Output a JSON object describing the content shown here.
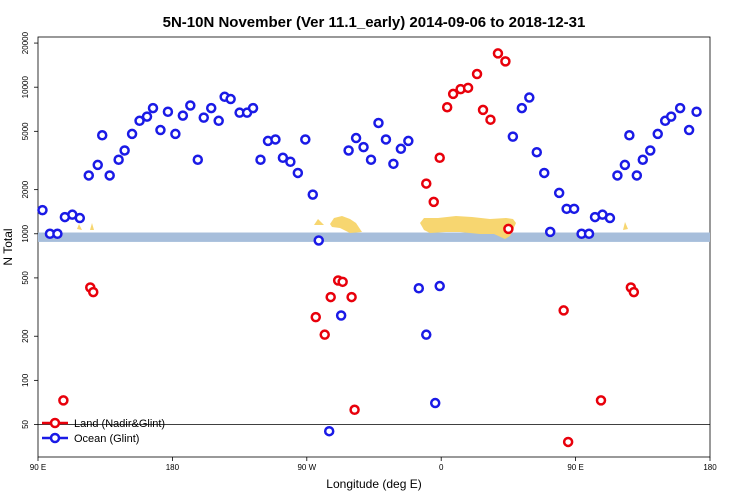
{
  "chart_data": {
    "type": "scatter",
    "title": "5N-10N November (Ver 11.1_early)   2014-09-06 to 2018-12-31",
    "xlabel": "Longitude (deg E)",
    "ylabel": "N Total",
    "x_axis": {
      "range_unwrapped": [
        90,
        540
      ],
      "ticks": [
        {
          "value": 90,
          "label": "90 E"
        },
        {
          "value": 180,
          "label": "180"
        },
        {
          "value": 270,
          "label": "90 W"
        },
        {
          "value": 360,
          "label": "0"
        },
        {
          "value": 450,
          "label": "90 E"
        },
        {
          "value": 540,
          "label": "180"
        }
      ]
    },
    "y_axis": {
      "scale": "log",
      "range": [
        30,
        22000
      ],
      "ticks": [
        50,
        100,
        200,
        500,
        1000,
        2000,
        5000,
        10000,
        20000
      ],
      "tick_labels": [
        "50",
        "100",
        "200",
        "500",
        "1000",
        "2000",
        "5000",
        "10000",
        "20000"
      ]
    },
    "reference_line": 50,
    "background_band": {
      "y_range": [
        880,
        1020
      ],
      "color": "#a7bedb"
    },
    "land_color": "#f7d670",
    "series": [
      {
        "name": "Land (Nadir&Glint)",
        "color": "#e8000b",
        "points": [
          [
            107,
            73
          ],
          [
            125,
            430
          ],
          [
            127,
            400
          ],
          [
            276,
            270
          ],
          [
            282,
            205
          ],
          [
            286,
            370
          ],
          [
            291,
            480
          ],
          [
            294,
            470
          ],
          [
            300,
            370
          ],
          [
            302,
            63
          ],
          [
            350,
            2200
          ],
          [
            355,
            1650
          ],
          [
            359,
            3300
          ],
          [
            364,
            7300
          ],
          [
            368,
            9000
          ],
          [
            373,
            9700
          ],
          [
            378,
            9900
          ],
          [
            384,
            12300
          ],
          [
            388,
            7000
          ],
          [
            393,
            6000
          ],
          [
            398,
            17000
          ],
          [
            403,
            15000
          ],
          [
            405,
            1080
          ],
          [
            442,
            300
          ],
          [
            445,
            38
          ],
          [
            467,
            73
          ],
          [
            487,
            430
          ],
          [
            489,
            400
          ]
        ]
      },
      {
        "name": "Ocean (Glint)",
        "color": "#1a1ae6",
        "points": [
          [
            93,
            1450
          ],
          [
            98,
            1000
          ],
          [
            103,
            1000
          ],
          [
            108,
            1300
          ],
          [
            113,
            1350
          ],
          [
            118,
            1280
          ],
          [
            124,
            2500
          ],
          [
            130,
            2950
          ],
          [
            133,
            4700
          ],
          [
            138,
            2500
          ],
          [
            144,
            3200
          ],
          [
            148,
            3700
          ],
          [
            153,
            4800
          ],
          [
            158,
            5900
          ],
          [
            163,
            6300
          ],
          [
            167,
            7200
          ],
          [
            172,
            5100
          ],
          [
            177,
            6800
          ],
          [
            182,
            4800
          ],
          [
            187,
            6400
          ],
          [
            192,
            7500
          ],
          [
            197,
            3200
          ],
          [
            201,
            6200
          ],
          [
            206,
            7200
          ],
          [
            211,
            5900
          ],
          [
            215,
            8600
          ],
          [
            219,
            8300
          ],
          [
            225,
            6700
          ],
          [
            230,
            6700
          ],
          [
            234,
            7200
          ],
          [
            239,
            3200
          ],
          [
            244,
            4300
          ],
          [
            249,
            4400
          ],
          [
            254,
            3300
          ],
          [
            259,
            3100
          ],
          [
            264,
            2600
          ],
          [
            269,
            4400
          ],
          [
            274,
            1850
          ],
          [
            278,
            900
          ],
          [
            285,
            45
          ],
          [
            293,
            277
          ],
          [
            298,
            3700
          ],
          [
            303,
            4500
          ],
          [
            308,
            3900
          ],
          [
            313,
            3200
          ],
          [
            318,
            5700
          ],
          [
            323,
            4400
          ],
          [
            328,
            3000
          ],
          [
            333,
            3800
          ],
          [
            338,
            4300
          ],
          [
            345,
            425
          ],
          [
            350,
            205
          ],
          [
            356,
            70
          ],
          [
            359,
            440
          ],
          [
            408,
            4600
          ],
          [
            414,
            7200
          ],
          [
            419,
            8500
          ],
          [
            424,
            3600
          ],
          [
            429,
            2600
          ],
          [
            433,
            1030
          ],
          [
            439,
            1900
          ],
          [
            444,
            1480
          ],
          [
            449,
            1480
          ],
          [
            454,
            1000
          ],
          [
            459,
            1000
          ],
          [
            463,
            1300
          ],
          [
            468,
            1350
          ],
          [
            473,
            1280
          ],
          [
            478,
            2500
          ],
          [
            483,
            2950
          ],
          [
            486,
            4700
          ],
          [
            491,
            2500
          ],
          [
            495,
            3200
          ],
          [
            500,
            3700
          ],
          [
            505,
            4800
          ],
          [
            510,
            5900
          ],
          [
            514,
            6300
          ],
          [
            520,
            7200
          ],
          [
            526,
            5100
          ],
          [
            531,
            6800
          ]
        ]
      }
    ],
    "legend": {
      "placement": "bottom-left",
      "entries": [
        "Land (Nadir&Glint)",
        "Ocean (Glint)"
      ]
    }
  }
}
